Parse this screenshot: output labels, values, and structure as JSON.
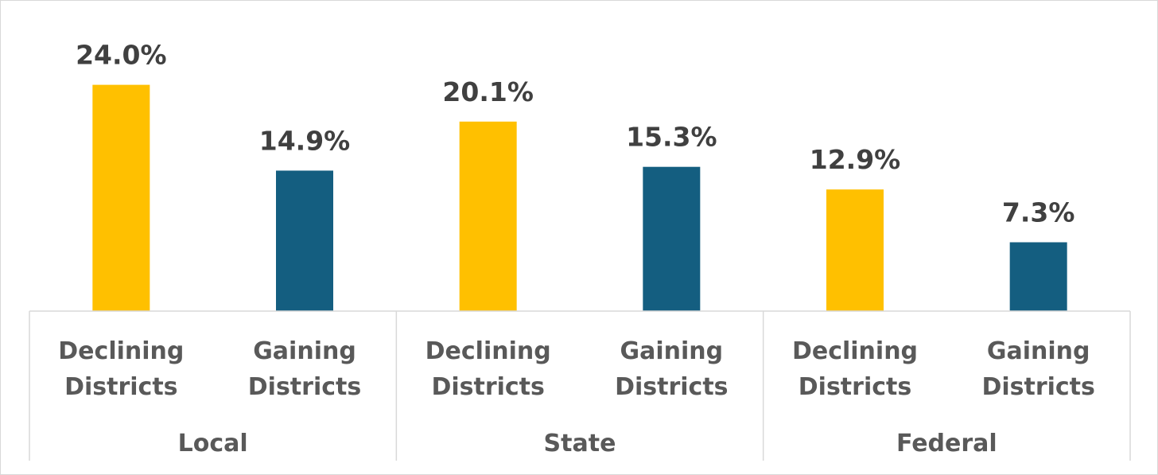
{
  "chart_data": {
    "type": "bar",
    "title": "",
    "xlabel": "",
    "ylabel": "",
    "ylim": [
      0,
      25
    ],
    "grid": false,
    "legend": "none",
    "value_format": "0.0%",
    "groups": [
      {
        "name": "Local",
        "categories": [
          {
            "label": "Declining Districts",
            "line1": "Declining",
            "line2": "Districts",
            "value": 24.0,
            "display": "24.0%",
            "color": "#FFC000"
          },
          {
            "label": "Gaining Districts",
            "line1": "Gaining",
            "line2": "Districts",
            "value": 14.9,
            "display": "14.9%",
            "color": "#145E80"
          }
        ]
      },
      {
        "name": "State",
        "categories": [
          {
            "label": "Declining Districts",
            "line1": "Declining",
            "line2": "Districts",
            "value": 20.1,
            "display": "20.1%",
            "color": "#FFC000"
          },
          {
            "label": "Gaining Districts",
            "line1": "Gaining",
            "line2": "Districts",
            "value": 15.3,
            "display": "15.3%",
            "color": "#145E80"
          }
        ]
      },
      {
        "name": "Federal",
        "categories": [
          {
            "label": "Declining Districts",
            "line1": "Declining",
            "line2": "Districts",
            "value": 12.9,
            "display": "12.9%",
            "color": "#FFC000"
          },
          {
            "label": "Gaining Districts",
            "line1": "Gaining",
            "line2": "Districts",
            "value": 7.3,
            "display": "7.3%",
            "color": "#145E80"
          }
        ]
      }
    ],
    "colors": {
      "declining": "#FFC000",
      "gaining": "#145E80",
      "axis": "#d9d9d9",
      "label_text": "#404040",
      "axis_text": "#595959"
    }
  }
}
